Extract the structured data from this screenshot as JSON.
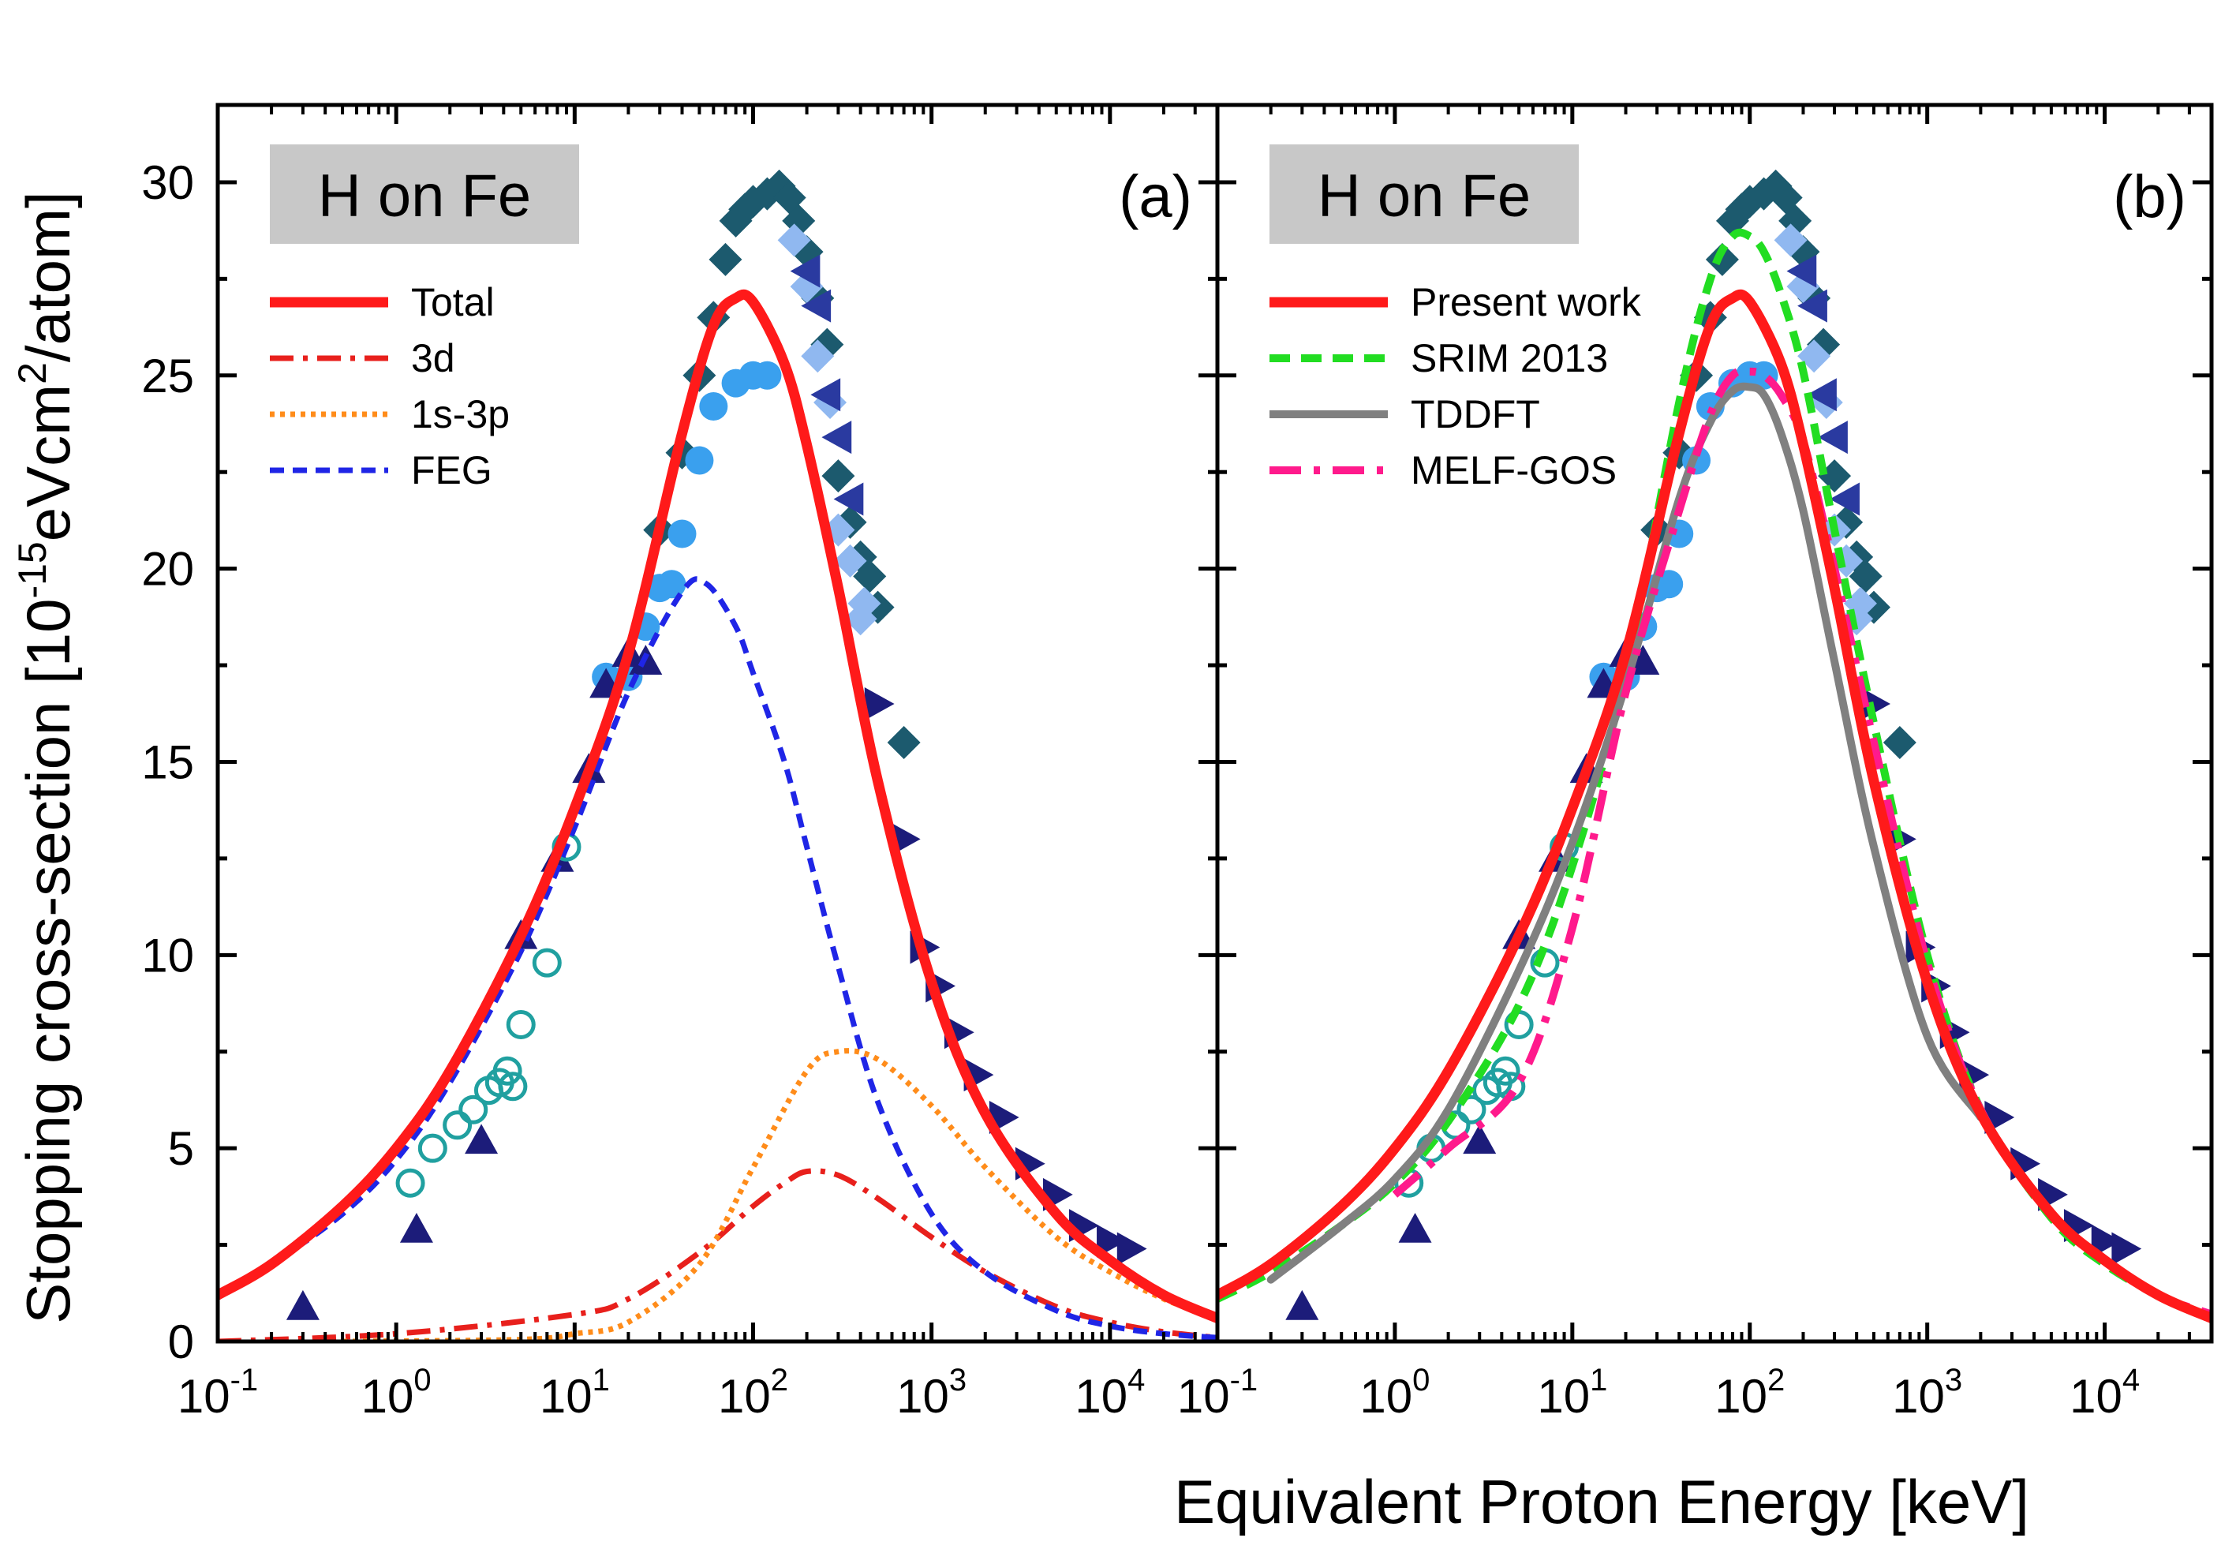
{
  "figure": {
    "xlabel": "Equivalent Proton Energy [keV]",
    "ylabel_prefix": "Stopping cross-section [10",
    "ylabel_exp1": "-15",
    "ylabel_mid": "eVcm",
    "ylabel_exp2": "2",
    "ylabel_suffix": "/atom]",
    "x_tick_base": "10",
    "x_tick_exponents": [
      "-1",
      "0",
      "1",
      "2",
      "3",
      "4"
    ],
    "y_tick_labels": [
      "0",
      "5",
      "10",
      "15",
      "20",
      "25",
      "30"
    ]
  },
  "colors": {
    "total": "#ff1a1a",
    "d3": "#e8201c",
    "s1s3p": "#ff8c1a",
    "feg": "#1f25e6",
    "srim": "#22dd22",
    "tddft": "#808080",
    "melf": "#ff1a8c",
    "title_box": "#c8c8c8",
    "navy": "#1c1c7a",
    "royal": "#2a3aa0",
    "teal_dark": "#1c5a6e",
    "sky": "#3aa0ee",
    "light_blue": "#90b8f0",
    "teal_ring": "#20a0a0"
  },
  "chart_data": [
    {
      "type": "line",
      "panel_label": "(a)",
      "title": "H on Fe",
      "x_scale": "log",
      "xlim": [
        0.1,
        40000
      ],
      "ylim": [
        0,
        32
      ],
      "legend_placement": "top-left",
      "series": [
        {
          "name": "Total",
          "style": "solid",
          "x": [
            0.1,
            0.2,
            0.5,
            1,
            2,
            5,
            10,
            20,
            40,
            60,
            80,
            100,
            150,
            200,
            300,
            500,
            1000,
            2000,
            5000,
            10000,
            20000,
            40000
          ],
          "y": [
            1.2,
            2.0,
            3.5,
            5.0,
            7.0,
            10.5,
            13.8,
            17.8,
            23.5,
            26.3,
            27.0,
            26.9,
            25.3,
            23.2,
            19.5,
            14.5,
            9.3,
            5.9,
            3.3,
            2.1,
            1.2,
            0.6
          ]
        },
        {
          "name": "3d",
          "style": "dashdot",
          "x": [
            0.1,
            1,
            10,
            20,
            50,
            100,
            150,
            200,
            300,
            500,
            1000,
            2000,
            5000,
            10000,
            20000,
            40000
          ],
          "y": [
            0.0,
            0.2,
            0.7,
            1.1,
            2.3,
            3.5,
            4.1,
            4.4,
            4.3,
            3.7,
            2.7,
            1.8,
            0.9,
            0.5,
            0.25,
            0.1
          ]
        },
        {
          "name": "1s-3p",
          "style": "dot",
          "x": [
            0.5,
            5,
            10,
            20,
            50,
            100,
            200,
            300,
            500,
            1000,
            2000,
            5000,
            10000,
            20000,
            40000
          ],
          "y": [
            0.0,
            0.05,
            0.2,
            0.5,
            2.0,
            4.5,
            7.0,
            7.5,
            7.3,
            6.1,
            4.5,
            2.7,
            1.8,
            1.1,
            0.6
          ]
        },
        {
          "name": "FEG",
          "style": "dash",
          "x": [
            0.1,
            0.2,
            0.5,
            1,
            2,
            5,
            10,
            20,
            40,
            55,
            80,
            100,
            150,
            200,
            300,
            500,
            1000,
            2000,
            5000,
            10000,
            20000,
            40000
          ],
          "y": [
            1.2,
            2.0,
            3.3,
            4.7,
            6.7,
            10.1,
            13.3,
            16.8,
            19.4,
            19.6,
            18.5,
            17.3,
            15.0,
            12.8,
            9.7,
            6.2,
            3.3,
            1.8,
            0.8,
            0.4,
            0.2,
            0.1
          ]
        }
      ],
      "experimental": [
        {
          "marker": "diamond",
          "color_key": "teal_dark",
          "x": [
            30,
            40,
            50,
            60,
            70,
            80,
            90,
            100,
            120,
            140,
            160,
            180,
            200,
            230,
            260,
            300,
            350,
            400,
            450,
            500,
            700
          ],
          "y": [
            21,
            23,
            25,
            26.5,
            28,
            29,
            29.3,
            29.5,
            29.7,
            29.9,
            29.6,
            29,
            28.2,
            27,
            25.8,
            22.4,
            21.2,
            20.3,
            19.8,
            19,
            15.5
          ]
        },
        {
          "marker": "diamond",
          "color_key": "light_blue",
          "x": [
            170,
            200,
            230,
            270,
            300,
            350,
            400,
            420
          ],
          "y": [
            28.5,
            27.3,
            25.5,
            24.3,
            21,
            20.2,
            18.7,
            19.1
          ]
        },
        {
          "marker": "triangle-left",
          "color_key": "royal",
          "x": [
            200,
            230,
            260,
            300,
            350
          ],
          "y": [
            27.7,
            26.8,
            24.5,
            23.4,
            21.8
          ]
        },
        {
          "marker": "circle",
          "color_key": "sky",
          "x": [
            15,
            20,
            25,
            30,
            35,
            40,
            50,
            60,
            80,
            100,
            120
          ],
          "y": [
            17.2,
            17.2,
            18.5,
            19.5,
            19.6,
            20.9,
            22.8,
            24.2,
            24.8,
            25,
            25
          ]
        },
        {
          "marker": "triangle-up",
          "color_key": "navy",
          "x": [
            0.3,
            1.3,
            3,
            5,
            8,
            12,
            15,
            20,
            25
          ],
          "y": [
            0.9,
            2.9,
            5.2,
            10.5,
            12.5,
            14.8,
            17,
            17.8,
            17.6
          ]
        },
        {
          "marker": "circle-open",
          "color_key": "teal_ring",
          "x": [
            1.2,
            1.6,
            2.2,
            2.7,
            3.3,
            3.8,
            4.2,
            4.5,
            5,
            7,
            9
          ],
          "y": [
            4.1,
            5,
            5.6,
            6,
            6.5,
            6.7,
            7,
            6.6,
            8.2,
            9.8,
            12.8
          ]
        },
        {
          "marker": "triangle-right",
          "color_key": "navy",
          "x": [
            500,
            700,
            900,
            1100,
            1400,
            1800,
            2500,
            3500,
            5000,
            7000,
            10000,
            13000
          ],
          "y": [
            16.5,
            13,
            10.2,
            9.2,
            8,
            6.9,
            5.8,
            4.6,
            3.8,
            3.0,
            2.6,
            2.4
          ]
        }
      ]
    },
    {
      "type": "line",
      "panel_label": "(b)",
      "title": "H on Fe",
      "x_scale": "log",
      "xlim": [
        0.1,
        40000
      ],
      "ylim": [
        0,
        32
      ],
      "legend_placement": "top-left",
      "series": [
        {
          "name": "Present work",
          "style": "solid",
          "x": [
            0.1,
            0.2,
            0.5,
            1,
            2,
            5,
            10,
            20,
            40,
            60,
            80,
            100,
            150,
            200,
            300,
            500,
            1000,
            2000,
            5000,
            10000,
            20000,
            40000
          ],
          "y": [
            1.2,
            2.0,
            3.5,
            5.0,
            7.0,
            10.5,
            13.8,
            17.8,
            23.5,
            26.3,
            27.0,
            26.9,
            25.3,
            23.2,
            19.5,
            14.5,
            9.3,
            5.9,
            3.3,
            2.1,
            1.2,
            0.6
          ]
        },
        {
          "name": "SRIM 2013",
          "style": "dash",
          "x": [
            0.1,
            0.2,
            0.5,
            1,
            2,
            5,
            10,
            20,
            40,
            60,
            80,
            100,
            120,
            150,
            200,
            300,
            500,
            1000,
            2000,
            5000,
            10000,
            20000,
            40000
          ],
          "y": [
            1.1,
            1.8,
            3.0,
            4.1,
            5.7,
            8.7,
            12.3,
            17.3,
            24.3,
            27.5,
            28.6,
            28.6,
            28.2,
            27.1,
            25.1,
            21,
            16,
            10,
            6.0,
            3.2,
            2.0,
            1.2,
            0.6
          ]
        },
        {
          "name": "TDDFT",
          "style": "solid-gray",
          "x": [
            0.2,
            0.5,
            1,
            2,
            5,
            10,
            20,
            40,
            60,
            80,
            100,
            120,
            150,
            200,
            300,
            500,
            1000,
            2000
          ],
          "y": [
            1.6,
            3.0,
            4.2,
            6.0,
            9.6,
            12.9,
            17,
            21.8,
            23.8,
            24.6,
            24.7,
            24.5,
            23.5,
            21.5,
            17.6,
            12.8,
            7.9,
            5.8
          ]
        },
        {
          "name": "MELF-GOS",
          "style": "dashdot",
          "x": [
            1,
            2,
            5,
            10,
            20,
            40,
            60,
            80,
            100,
            120,
            150,
            200,
            300,
            500,
            1000,
            2000,
            5000,
            10000,
            20000,
            40000
          ],
          "y": [
            3.8,
            5,
            6.7,
            10.7,
            16.8,
            21.5,
            24,
            25,
            25.1,
            25,
            24.5,
            23.3,
            20,
            15.5,
            9.8,
            6.0,
            3.3,
            2.1,
            1.2,
            0.7
          ]
        }
      ],
      "experimental": [
        {
          "marker": "diamond",
          "color_key": "teal_dark",
          "x": [
            30,
            40,
            50,
            60,
            70,
            80,
            90,
            100,
            120,
            140,
            160,
            180,
            200,
            230,
            260,
            300,
            350,
            400,
            450,
            500,
            700
          ],
          "y": [
            21,
            23,
            25,
            26.5,
            28,
            29,
            29.3,
            29.5,
            29.7,
            29.9,
            29.6,
            29,
            28.2,
            27,
            25.8,
            22.4,
            21.2,
            20.3,
            19.8,
            19,
            15.5
          ]
        },
        {
          "marker": "diamond",
          "color_key": "light_blue",
          "x": [
            170,
            200,
            230,
            270,
            300,
            350,
            400,
            420
          ],
          "y": [
            28.5,
            27.3,
            25.5,
            24.3,
            21,
            20.2,
            18.7,
            19.1
          ]
        },
        {
          "marker": "triangle-left",
          "color_key": "royal",
          "x": [
            200,
            230,
            260,
            300,
            350
          ],
          "y": [
            27.7,
            26.8,
            24.5,
            23.4,
            21.8
          ]
        },
        {
          "marker": "circle",
          "color_key": "sky",
          "x": [
            15,
            20,
            25,
            30,
            35,
            40,
            50,
            60,
            80,
            100,
            120
          ],
          "y": [
            17.2,
            17.2,
            18.5,
            19.5,
            19.6,
            20.9,
            22.8,
            24.2,
            24.8,
            25,
            25
          ]
        },
        {
          "marker": "triangle-up",
          "color_key": "navy",
          "x": [
            0.3,
            1.3,
            3,
            5,
            8,
            12,
            15,
            20,
            25
          ],
          "y": [
            0.9,
            2.9,
            5.2,
            10.5,
            12.5,
            14.8,
            17,
            17.8,
            17.6
          ]
        },
        {
          "marker": "circle-open",
          "color_key": "teal_ring",
          "x": [
            1.2,
            1.6,
            2.2,
            2.7,
            3.3,
            3.8,
            4.2,
            4.5,
            5,
            7,
            9
          ],
          "y": [
            4.1,
            5,
            5.6,
            6,
            6.5,
            6.7,
            7,
            6.6,
            8.2,
            9.8,
            12.8
          ]
        },
        {
          "marker": "triangle-right",
          "color_key": "navy",
          "x": [
            500,
            700,
            900,
            1100,
            1400,
            1800,
            2500,
            3500,
            5000,
            7000,
            10000,
            13000
          ],
          "y": [
            16.5,
            13,
            10.2,
            9.2,
            8,
            6.9,
            5.8,
            4.6,
            3.8,
            3.0,
            2.6,
            2.4
          ]
        }
      ]
    }
  ]
}
